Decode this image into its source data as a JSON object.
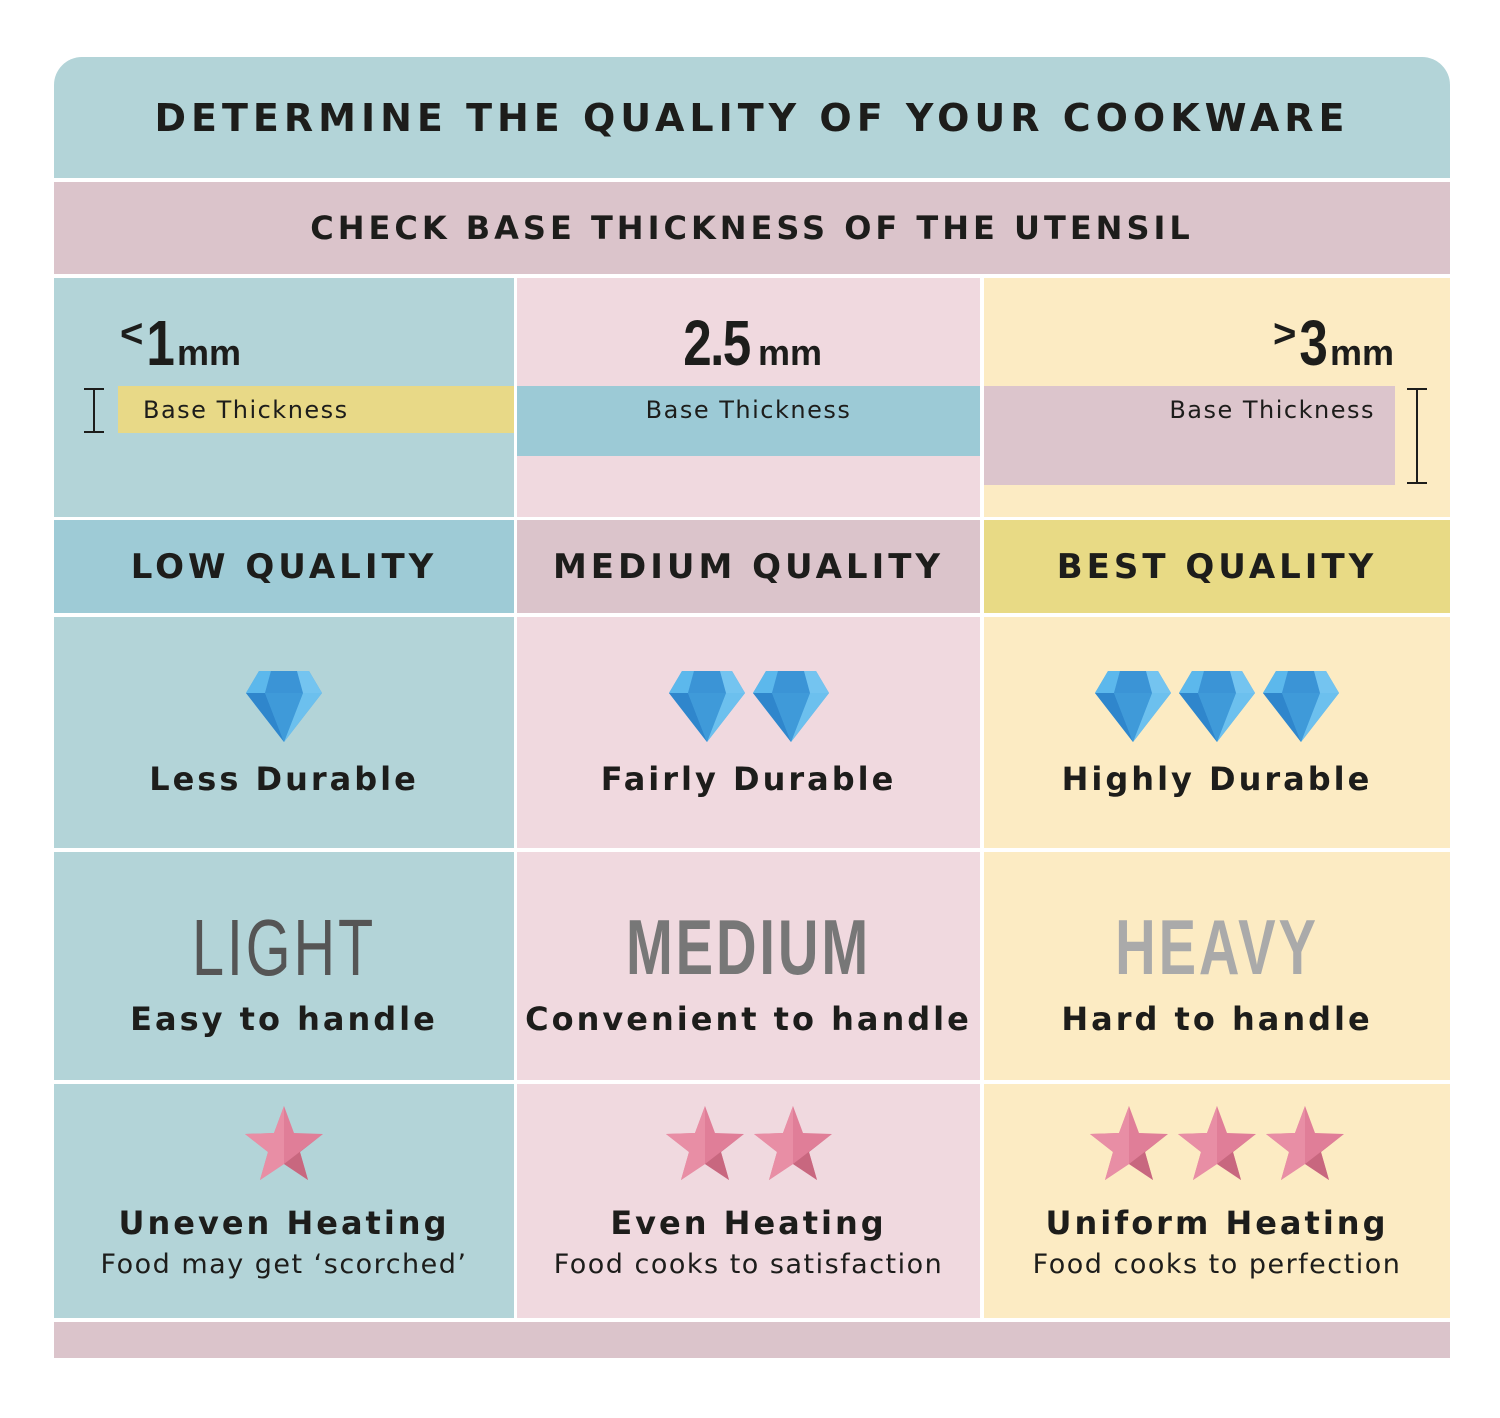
{
  "title": "DETERMINE THE QUALITY OF YOUR COOKWARE",
  "subtitle": "CHECK BASE THICKNESS OF THE UTENSIL",
  "colors": {
    "teal": "#b3d4d8",
    "pink": "#f0d9df",
    "cream": "#fcebc3",
    "diamond": "#3f9ad9",
    "star": "#e07e98"
  },
  "columns": [
    {
      "symbol": "<",
      "value": "1",
      "unit": "mm",
      "bar_label": "Base Thickness",
      "quality": "LOW QUALITY",
      "diamonds": 1,
      "durability": "Less Durable",
      "weight": "LIGHT",
      "weight_note": "Easy to handle",
      "stars": 1,
      "heating": "Uneven Heating",
      "heating_note": "Food may get ‘scorched’"
    },
    {
      "symbol": "",
      "value": "2.5",
      "unit": "mm",
      "bar_label": "Base Thickness",
      "quality": "MEDIUM QUALITY",
      "diamonds": 2,
      "durability": "Fairly Durable",
      "weight": "MEDIUM",
      "weight_note": "Convenient to handle",
      "stars": 2,
      "heating": "Even Heating",
      "heating_note": "Food cooks to satisfaction"
    },
    {
      "symbol": ">",
      "value": "3",
      "unit": "mm",
      "bar_label": "Base Thickness",
      "quality": "BEST QUALITY",
      "diamonds": 3,
      "durability": "Highly Durable",
      "weight": "HEAVY",
      "weight_note": "Hard to handle",
      "stars": 3,
      "heating": "Uniform Heating",
      "heating_note": "Food cooks to perfection"
    }
  ]
}
